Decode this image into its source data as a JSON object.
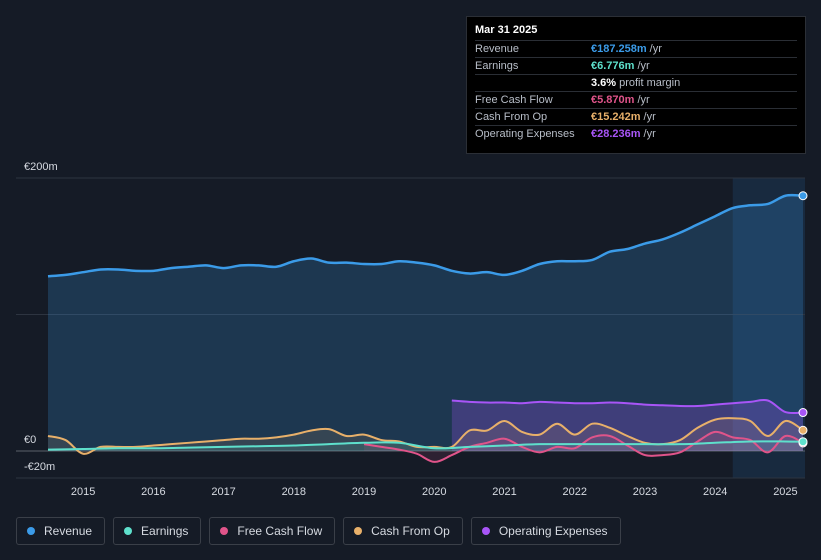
{
  "tooltip": {
    "date": "Mar 31 2025",
    "rows": [
      {
        "label": "Revenue",
        "value": "€187.258m",
        "unit": "/yr",
        "color": "#3b9be8"
      },
      {
        "label": "Earnings",
        "value": "€6.776m",
        "unit": "/yr",
        "color": "#5ee0cc"
      },
      {
        "label": "",
        "value": "3.6%",
        "unit": "profit margin",
        "color": "#ffffff"
      },
      {
        "label": "Free Cash Flow",
        "value": "€5.870m",
        "unit": "/yr",
        "color": "#e0548a"
      },
      {
        "label": "Cash From Op",
        "value": "€15.242m",
        "unit": "/yr",
        "color": "#e8b06a"
      },
      {
        "label": "Operating Expenses",
        "value": "€28.236m",
        "unit": "/yr",
        "color": "#a855f7"
      }
    ]
  },
  "legend": [
    {
      "label": "Revenue",
      "color": "#3b9be8"
    },
    {
      "label": "Earnings",
      "color": "#5ee0cc"
    },
    {
      "label": "Free Cash Flow",
      "color": "#e0548a"
    },
    {
      "label": "Cash From Op",
      "color": "#e8b06a"
    },
    {
      "label": "Operating Expenses",
      "color": "#a855f7"
    }
  ],
  "chart_data": {
    "type": "area",
    "title": "",
    "xlabel": "",
    "ylabel": "",
    "y_tick_labels": [
      "€200m",
      "€0",
      "-€20m"
    ],
    "ylim": [
      -20,
      200
    ],
    "xlim": [
      2014.5,
      2025.25
    ],
    "x_ticks": [
      2015,
      2016,
      2017,
      2018,
      2019,
      2020,
      2021,
      2022,
      2023,
      2024,
      2025
    ],
    "highlight_start": 2024.25,
    "series": [
      {
        "name": "Revenue",
        "color": "#3b9be8",
        "fill": true,
        "x": [
          2014.5,
          2014.75,
          2015,
          2015.25,
          2015.5,
          2015.75,
          2016,
          2016.25,
          2016.5,
          2016.75,
          2017,
          2017.25,
          2017.5,
          2017.75,
          2018,
          2018.25,
          2018.5,
          2018.75,
          2019,
          2019.25,
          2019.5,
          2019.75,
          2020,
          2020.25,
          2020.5,
          2020.75,
          2021,
          2021.25,
          2021.5,
          2021.75,
          2022,
          2022.25,
          2022.5,
          2022.75,
          2023,
          2023.25,
          2023.5,
          2023.75,
          2024,
          2024.25,
          2024.5,
          2024.75,
          2025,
          2025.25
        ],
        "values": [
          128,
          129,
          131,
          133,
          133,
          132,
          132,
          134,
          135,
          136,
          134,
          136,
          136,
          135,
          139,
          141,
          138,
          138,
          137,
          137,
          139,
          138,
          136,
          132,
          130,
          131,
          129,
          132,
          137,
          139,
          139,
          140,
          146,
          148,
          152,
          155,
          160,
          166,
          172,
          178,
          180,
          181,
          187,
          187
        ]
      },
      {
        "name": "Earnings",
        "color": "#5ee0cc",
        "fill": false,
        "x": [
          2014.5,
          2015,
          2015.5,
          2016,
          2016.5,
          2017,
          2017.5,
          2018,
          2018.5,
          2019,
          2019.5,
          2020,
          2020.5,
          2021,
          2021.5,
          2022,
          2022.5,
          2023,
          2023.5,
          2024,
          2024.5,
          2025,
          2025.25
        ],
        "values": [
          1,
          1.5,
          2,
          2,
          2.5,
          3,
          3.5,
          4,
          5,
          6,
          6,
          2,
          3,
          4,
          5,
          5,
          5,
          5,
          5,
          6,
          7,
          7,
          6.8
        ]
      },
      {
        "name": "Free Cash Flow",
        "color": "#e0548a",
        "fill": false,
        "x": [
          2019.0,
          2019.25,
          2019.5,
          2019.75,
          2020,
          2020.25,
          2020.5,
          2020.75,
          2021,
          2021.25,
          2021.5,
          2021.75,
          2022,
          2022.25,
          2022.5,
          2022.75,
          2023,
          2023.25,
          2023.5,
          2023.75,
          2024,
          2024.25,
          2024.5,
          2024.75,
          2025,
          2025.25
        ],
        "values": [
          5,
          3,
          1,
          -2,
          -8,
          -3,
          3,
          6,
          9,
          3,
          -1,
          3,
          2,
          10,
          11,
          4,
          -3,
          -3,
          -1,
          7,
          14,
          10,
          8,
          -1,
          11,
          5.9
        ]
      },
      {
        "name": "Cash From Op",
        "color": "#e8b06a",
        "fill": false,
        "x": [
          2014.5,
          2014.75,
          2015,
          2015.25,
          2015.5,
          2015.75,
          2016,
          2016.25,
          2016.5,
          2016.75,
          2017,
          2017.25,
          2017.5,
          2017.75,
          2018,
          2018.25,
          2018.5,
          2018.75,
          2019,
          2019.25,
          2019.5,
          2019.75,
          2020,
          2020.25,
          2020.5,
          2020.75,
          2021,
          2021.25,
          2021.5,
          2021.75,
          2022,
          2022.25,
          2022.5,
          2022.75,
          2023,
          2023.25,
          2023.5,
          2023.75,
          2024,
          2024.25,
          2024.5,
          2024.75,
          2025,
          2025.25
        ],
        "values": [
          11,
          8,
          -2,
          3,
          3,
          3,
          4,
          5,
          6,
          7,
          8,
          9,
          9,
          10,
          12,
          15,
          16,
          11,
          12,
          8,
          7,
          3,
          3,
          3,
          15,
          15,
          22,
          14,
          12,
          20,
          12,
          20,
          17,
          11,
          6,
          5,
          8,
          17,
          23,
          24,
          22,
          11,
          22,
          15.2
        ]
      },
      {
        "name": "Operating Expenses",
        "color": "#a855f7",
        "fill": true,
        "x": [
          2020.25,
          2020.5,
          2020.75,
          2021,
          2021.25,
          2021.5,
          2021.75,
          2022,
          2022.25,
          2022.5,
          2022.75,
          2023,
          2023.25,
          2023.5,
          2023.75,
          2024,
          2024.25,
          2024.5,
          2024.75,
          2025,
          2025.25
        ],
        "values": [
          37,
          36,
          35.5,
          35.5,
          35,
          36,
          35.5,
          35,
          35,
          35.5,
          35,
          34,
          33.5,
          33,
          33,
          34,
          35,
          36,
          37,
          28.5,
          28.2
        ]
      }
    ]
  }
}
